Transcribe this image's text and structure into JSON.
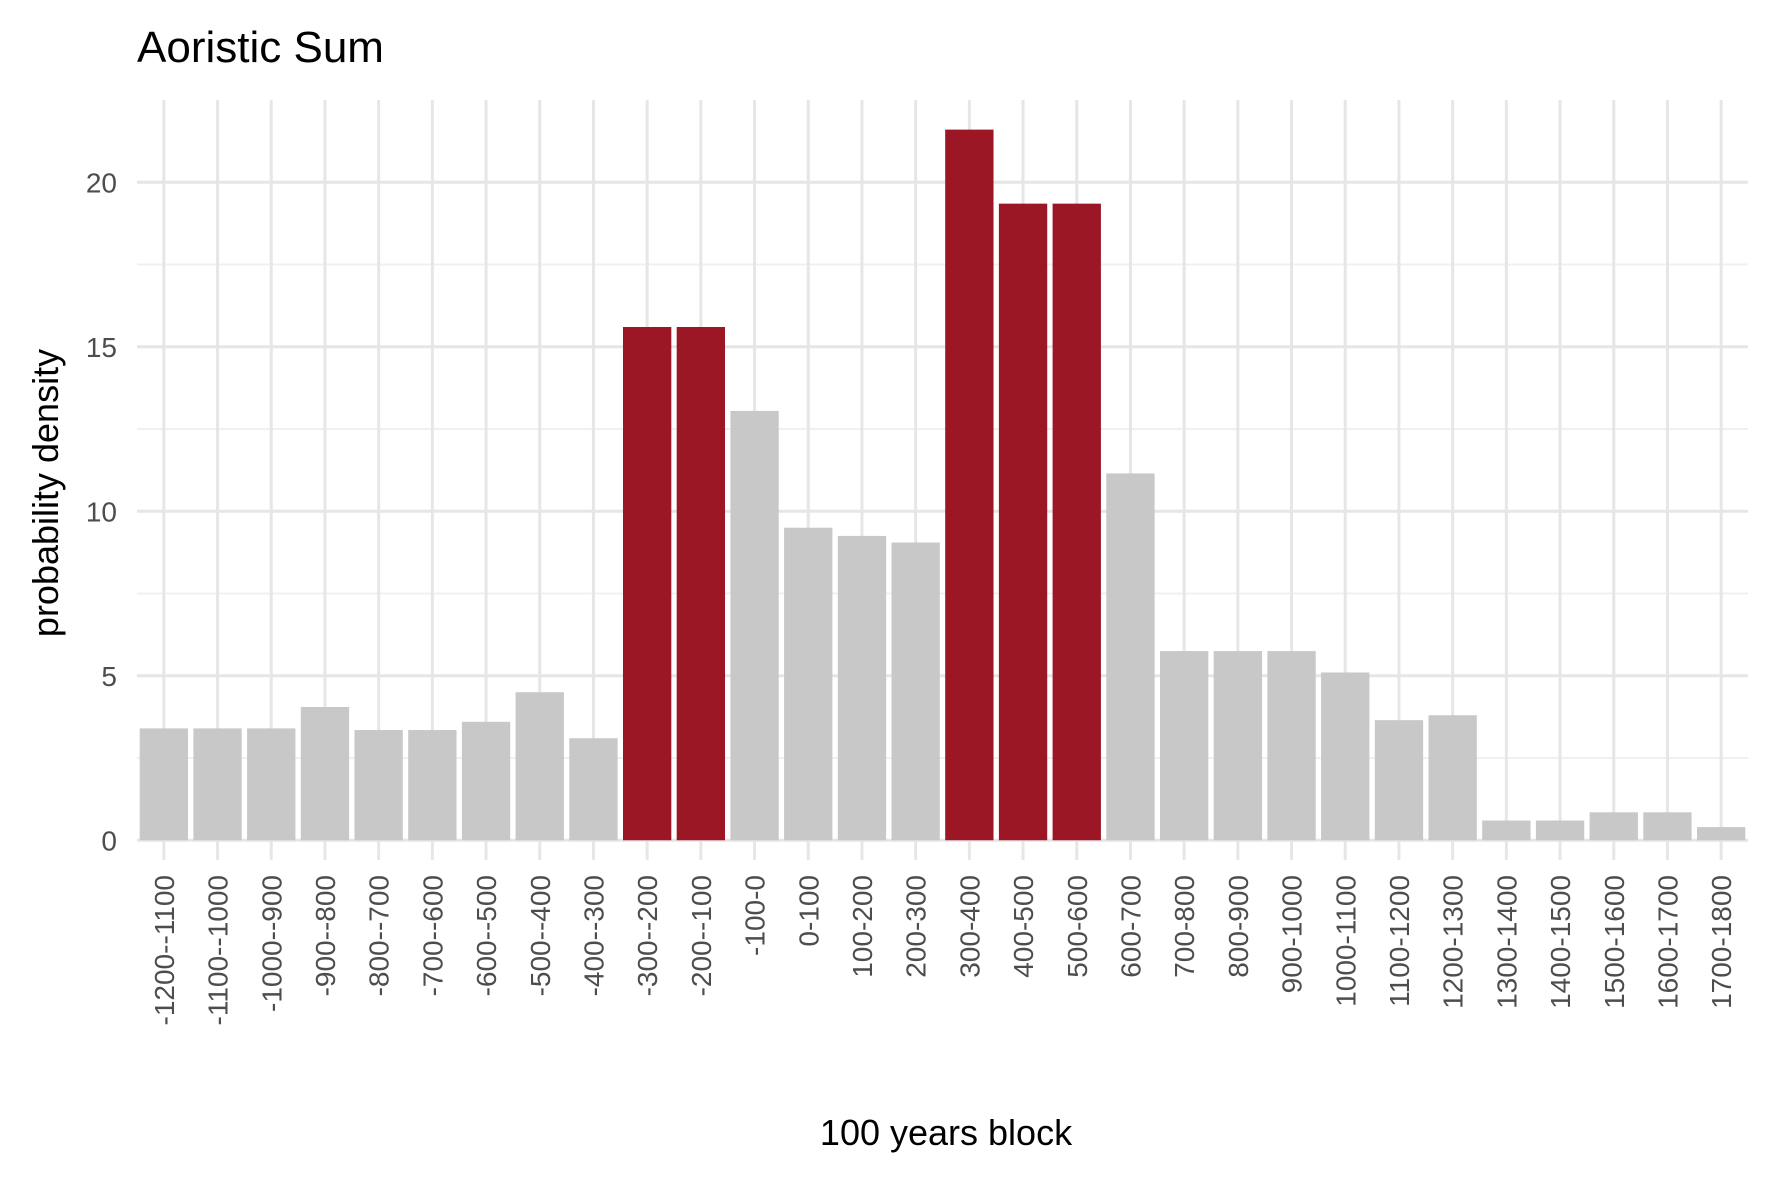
{
  "chart_data": {
    "type": "bar",
    "title": "Aoristic Sum",
    "xlabel": "100 years block",
    "ylabel": "probability density",
    "ylim": [
      -0.6,
      22.5
    ],
    "yticks": [
      0,
      5,
      10,
      15,
      20
    ],
    "grid": true,
    "legend": "none",
    "colors": {
      "default": "#c8c8c8",
      "highlight": "#9b1726",
      "grid": "#e6e6e6"
    },
    "categories": [
      "-1200--1100",
      "-1100--1000",
      "-1000--900",
      "-900--800",
      "-800--700",
      "-700--600",
      "-600--500",
      "-500--400",
      "-400--300",
      "-300--200",
      "-200--100",
      "-100-0",
      "0-100",
      "100-200",
      "200-300",
      "300-400",
      "400-500",
      "500-600",
      "600-700",
      "700-800",
      "800-900",
      "900-1000",
      "1000-1100",
      "1100-1200",
      "1200-1300",
      "1300-1400",
      "1400-1500",
      "1500-1600",
      "1600-1700",
      "1700-1800"
    ],
    "values": [
      3.4,
      3.4,
      3.4,
      4.05,
      3.35,
      3.35,
      3.6,
      4.5,
      3.1,
      15.6,
      15.6,
      13.05,
      9.5,
      9.25,
      9.05,
      21.6,
      19.35,
      19.35,
      11.15,
      5.75,
      5.75,
      5.75,
      5.1,
      3.65,
      3.8,
      0.6,
      0.6,
      0.85,
      0.85,
      0.4
    ],
    "highlighted": [
      "-300--200",
      "-200--100",
      "300-400",
      "400-500",
      "500-600"
    ]
  }
}
